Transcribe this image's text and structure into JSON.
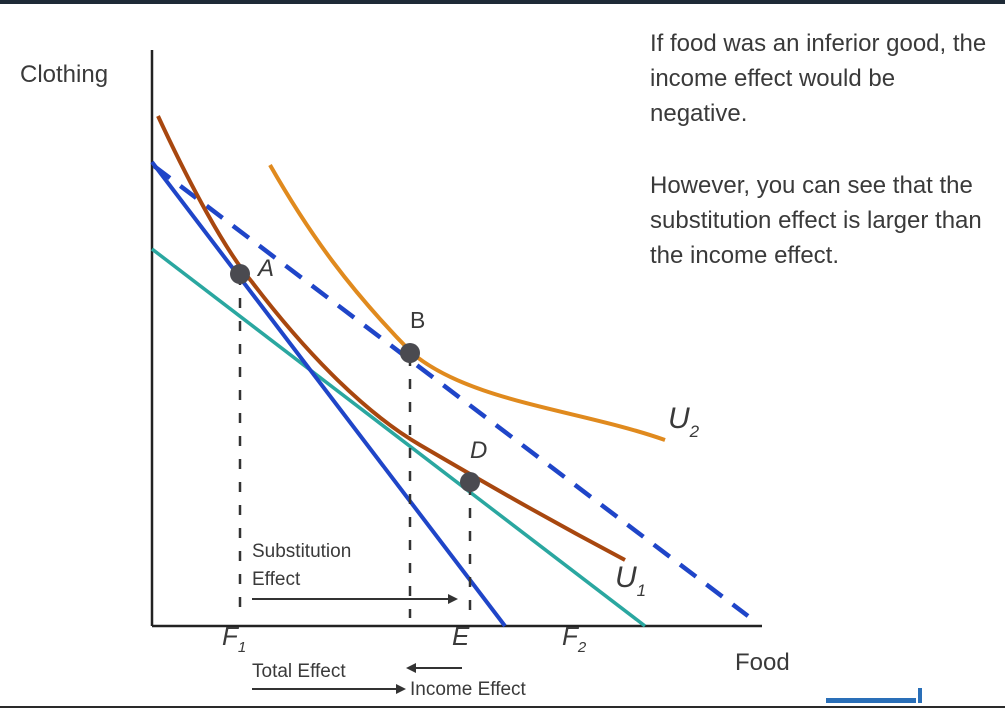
{
  "axes": {
    "y_label": "Clothing",
    "x_label": "Food"
  },
  "note": {
    "paragraph1": "If food was an inferior good, the income effect would be negative.",
    "paragraph2": "However, you can see that the substitution effect is larger than the income effect."
  },
  "points": {
    "A": "A",
    "B": "B",
    "D": "D"
  },
  "curves": {
    "U1": {
      "letter": "U",
      "sub": "1"
    },
    "U2": {
      "letter": "U",
      "sub": "2"
    }
  },
  "x_ticks": {
    "F1": {
      "letter": "F",
      "sub": "1"
    },
    "E": "E",
    "F2": {
      "letter": "F",
      "sub": "2"
    }
  },
  "effects": {
    "substitution_line1": "Substitution",
    "substitution_line2": "Effect",
    "total": "Total Effect",
    "income": "Income Effect"
  },
  "colors": {
    "budget_original": "#1f45c8",
    "budget_new": "#1f45c8",
    "budget_compensated": "#2aa7a0",
    "indifference_U1": "#a8470f",
    "indifference_U2": "#e08a1e",
    "points": "#4a4a50",
    "axes": "#222222",
    "text": "#3a3a3a"
  }
}
